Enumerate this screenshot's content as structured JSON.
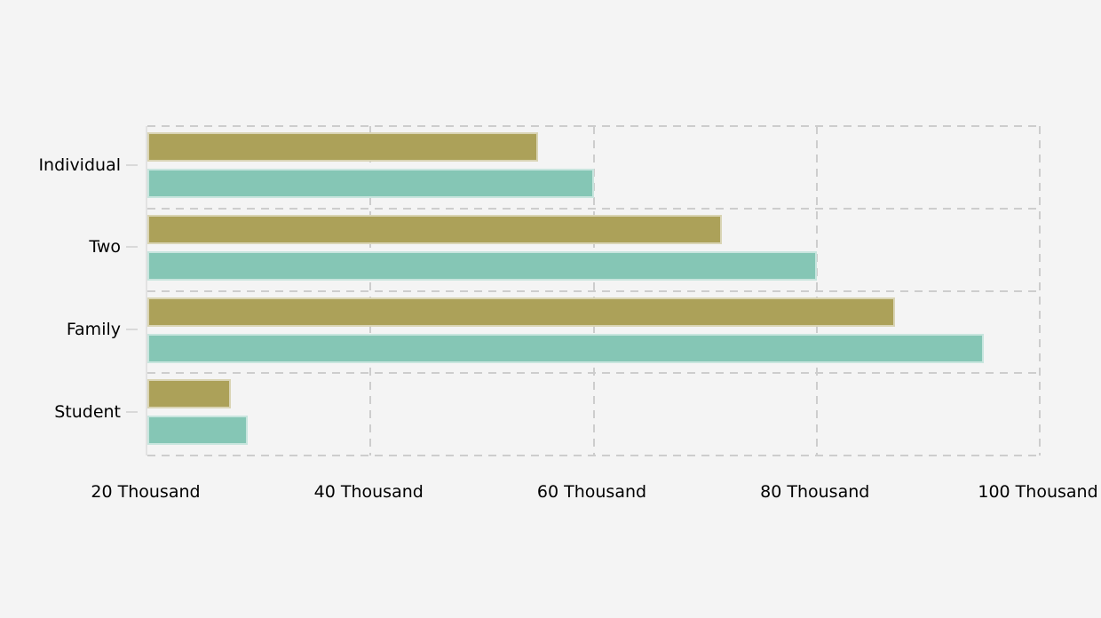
{
  "page": {
    "background_color": "#f4f4f4",
    "title": ""
  },
  "chart_data": {
    "type": "bar",
    "orientation": "horizontal",
    "title": "",
    "xlabel": "",
    "ylabel": "",
    "legend": "none",
    "value_unit": "Thousand",
    "xlim": [
      20,
      100
    ],
    "categories": [
      "Individual",
      "Two",
      "Family",
      "Student"
    ],
    "series": [
      {
        "name": "series-1",
        "color": "#aca159",
        "values": [
          55,
          71.5,
          87,
          27.5
        ]
      },
      {
        "name": "series-2",
        "color": "#85c6b5",
        "values": [
          60,
          80,
          95,
          29
        ]
      }
    ],
    "x_ticks": [
      {
        "value": 20,
        "label": "20 Thousand"
      },
      {
        "value": 40,
        "label": "40 Thousand"
      },
      {
        "value": 60,
        "label": "60 Thousand"
      },
      {
        "value": 80,
        "label": "80 Thousand"
      },
      {
        "value": 100,
        "label": "100 Thousand"
      }
    ],
    "grid": {
      "style": "dashed",
      "color": "#cdcdcd",
      "vertical_lines_at": [
        40,
        60,
        80,
        100
      ],
      "horizontal_lines": "category-boundaries",
      "axis_line_color": "#e2e2e2"
    }
  }
}
